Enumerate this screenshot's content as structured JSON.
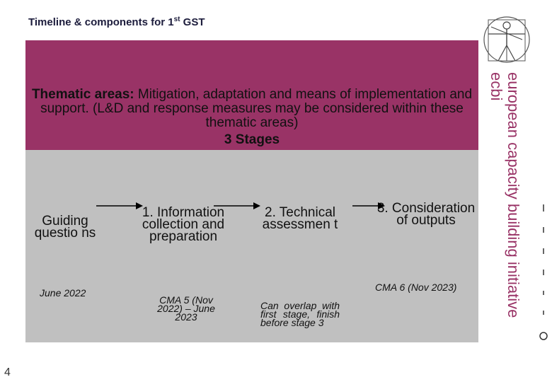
{
  "title": {
    "prefix": "Timeline & components for 1",
    "sup": "st",
    "suffix": " GST"
  },
  "thematic": {
    "bold": "Thematic areas:",
    "text": " Mitigation, adaptation and means of implementation and support. (L&D and response measures may be considered within these thematic areas)"
  },
  "stages_label": "3 Stages",
  "steps": [
    {
      "label": "Guiding questio ns",
      "date": "June 2022"
    },
    {
      "label": "1. Information collection and preparation",
      "date": "CMA 5 (Nov 2022) – June 2023"
    },
    {
      "label": "2. Technical assessmen t",
      "date": "Can overlap with first stage, finish before stage 3"
    },
    {
      "label": "3. Consideration of outputs",
      "date": "CMA 6 (Nov 2023)"
    }
  ],
  "side": {
    "line1": "european capacity building initiative",
    "line2": "ecbi"
  },
  "page_number": "4",
  "colors": {
    "band": "#993366",
    "gray": "#c0c0c0",
    "side_text": "#993366"
  },
  "icons": [
    "vitruvian-man-logo",
    "right-arrow"
  ]
}
